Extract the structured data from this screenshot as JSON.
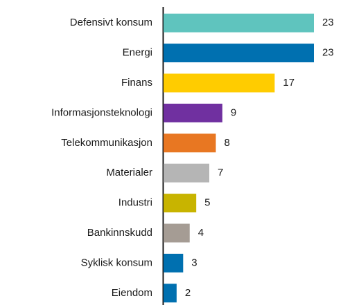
{
  "chart_data": {
    "type": "bar",
    "orientation": "horizontal",
    "categories": [
      "Defensivt konsum",
      "Energi",
      "Finans",
      "Informasjonsteknologi",
      "Telekommunikasjon",
      "Materialer",
      "Industri",
      "Bankinnskudd",
      "Syklisk konsum",
      "Eiendom"
    ],
    "values": [
      23,
      23,
      17,
      9,
      8,
      7,
      5,
      4,
      3,
      2
    ],
    "colors": [
      "#5fc4be",
      "#0070b0",
      "#ffcc00",
      "#7030a0",
      "#e87722",
      "#b5b5b5",
      "#c8b400",
      "#a59c94",
      "#0070b0",
      "#0070b0"
    ]
  }
}
